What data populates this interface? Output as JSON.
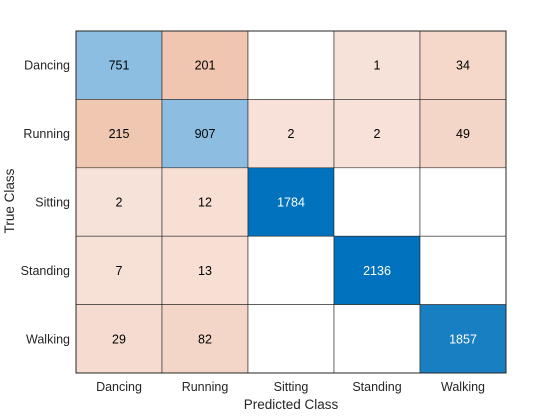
{
  "chart_data": {
    "type": "heatmap",
    "title": "",
    "xlabel": "Predicted Class",
    "ylabel": "True Class",
    "x_categories": [
      "Dancing",
      "Running",
      "Sitting",
      "Standing",
      "Walking"
    ],
    "y_categories": [
      "Dancing",
      "Running",
      "Sitting",
      "Standing",
      "Walking"
    ],
    "values": [
      [
        751,
        201,
        null,
        1,
        34
      ],
      [
        215,
        907,
        2,
        2,
        49
      ],
      [
        2,
        12,
        1784,
        null,
        null
      ],
      [
        7,
        13,
        null,
        2136,
        null
      ],
      [
        29,
        82,
        null,
        null,
        1857
      ]
    ],
    "colors": {
      "diagonal_light": "#9cc6e5",
      "diagonal_dark": "#0072bd",
      "offdiag_light": "#f8e4dc",
      "offdiag_dark": "#f0c6b0",
      "empty": "#ffffff",
      "grid": "#262626"
    }
  }
}
